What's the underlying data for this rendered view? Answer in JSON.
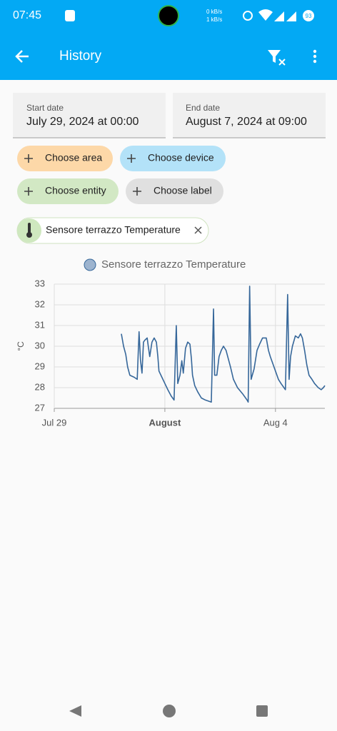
{
  "status_bar": {
    "time": "07:45",
    "network_speed": [
      "0 kB/s",
      "1 kB/s"
    ],
    "battery": "93"
  },
  "app_bar": {
    "title": "History"
  },
  "date_range": {
    "start": {
      "label": "Start date",
      "value": "July 29, 2024 at 00:00"
    },
    "end": {
      "label": "End date",
      "value": "August 7, 2024 at 09:00"
    }
  },
  "filters": [
    "Choose area",
    "Choose device",
    "Choose entity",
    "Choose label"
  ],
  "selected_entity": "Sensore terrazzo Temperature",
  "chart_data": {
    "type": "line",
    "ylabel": "°C",
    "x": [
      1.82,
      1.88,
      1.94,
      1.99,
      2.05,
      2.17,
      2.25,
      2.3,
      2.34,
      2.38,
      2.42,
      2.46,
      2.52,
      2.55,
      2.59,
      2.65,
      2.71,
      2.77,
      2.81,
      2.84,
      2.92,
      3.0,
      3.08,
      3.17,
      3.25,
      3.31,
      3.35,
      3.41,
      3.46,
      3.5,
      3.56,
      3.62,
      3.68,
      3.72,
      3.75,
      3.81,
      3.89,
      3.99,
      4.1,
      4.26,
      4.32,
      4.35,
      4.41,
      4.47,
      4.53,
      4.59,
      4.66,
      4.72,
      4.78,
      4.86,
      4.97,
      5.11,
      5.23,
      5.26,
      5.3,
      5.34,
      5.42,
      5.5,
      5.57,
      5.65,
      5.75,
      5.81,
      5.86,
      5.92,
      6.0,
      6.08,
      6.15,
      6.23,
      6.27,
      6.33,
      6.37,
      6.41,
      6.46,
      6.54,
      6.62,
      6.68,
      6.73,
      6.79,
      6.85,
      6.91,
      6.99,
      7.06,
      7.16,
      7.24,
      7.3,
      7.34
    ],
    "series": [
      {
        "name": "Sensore terrazzo Temperature",
        "color": "#36679a",
        "values": [
          30.6,
          30.0,
          29.6,
          29.0,
          28.6,
          28.5,
          28.4,
          30.7,
          29.3,
          28.7,
          30.2,
          30.3,
          30.4,
          30.0,
          29.5,
          30.2,
          30.4,
          30.2,
          29.5,
          28.8,
          28.5,
          28.2,
          27.9,
          27.6,
          27.4,
          31.0,
          28.2,
          28.6,
          29.3,
          28.7,
          29.9,
          30.2,
          30.1,
          29.4,
          28.6,
          28.1,
          27.8,
          27.5,
          27.4,
          27.3,
          31.8,
          28.6,
          28.6,
          29.5,
          29.8,
          30.0,
          29.8,
          29.4,
          29.0,
          28.4,
          28.0,
          27.7,
          27.4,
          27.3,
          32.9,
          28.4,
          28.9,
          29.8,
          30.1,
          30.4,
          30.4,
          29.8,
          29.5,
          29.2,
          28.8,
          28.4,
          28.2,
          28.0,
          27.9,
          32.5,
          28.4,
          29.5,
          30.0,
          30.5,
          30.4,
          30.6,
          30.4,
          29.8,
          29.1,
          28.6,
          28.4,
          28.2,
          28.0,
          27.9,
          28.0,
          28.1
        ]
      }
    ],
    "xlim": [
      0,
      7.34
    ],
    "xticks": [
      {
        "value": 0,
        "label": "Jul 29"
      },
      {
        "value": 3,
        "label": "August"
      },
      {
        "value": 6,
        "label": "Aug 4"
      }
    ],
    "ylim": [
      27,
      33
    ],
    "yticks": [
      27,
      28,
      29,
      30,
      31,
      32,
      33
    ],
    "grid": true
  }
}
